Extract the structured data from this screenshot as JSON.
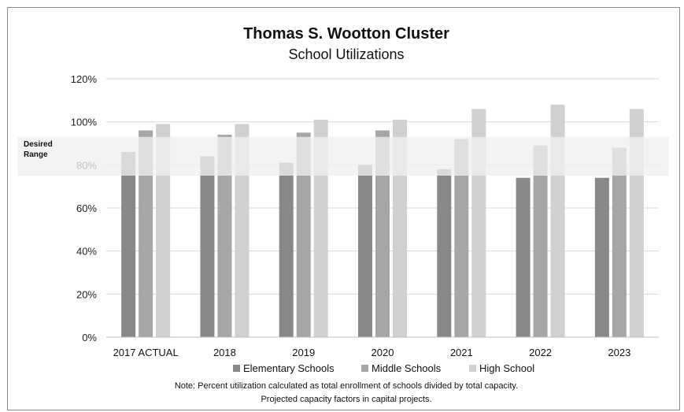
{
  "chart_data": {
    "type": "bar",
    "title": "Thomas S. Wootton Cluster",
    "subtitle": "School Utilizations",
    "categories": [
      "2017 ACTUAL",
      "2018",
      "2019",
      "2020",
      "2021",
      "2022",
      "2023"
    ],
    "series": [
      {
        "name": "Elementary Schools",
        "color": "#888888",
        "values": [
          86,
          84,
          81,
          80,
          78,
          74,
          74
        ]
      },
      {
        "name": "Middle Schools",
        "color": "#a6a6a6",
        "values": [
          96,
          94,
          95,
          96,
          92,
          89,
          88
        ]
      },
      {
        "name": "High School",
        "color": "#d0d0d0",
        "values": [
          99,
          99,
          101,
          101,
          106,
          108,
          106
        ]
      }
    ],
    "ylim": [
      0,
      120
    ],
    "yticks": [
      "0%",
      "20%",
      "40%",
      "60%",
      "80%",
      "100%",
      "120%"
    ],
    "tick_values": [
      0,
      20,
      40,
      60,
      80,
      100,
      120
    ],
    "grid": true,
    "legend": "bottom",
    "desired_range": {
      "label_line1": "Desired",
      "label_line2": "Range",
      "low": 75,
      "high": 93
    },
    "note_line1": "Note:  Percent utilization calculated as total enrollment of schools divided by total capacity.",
    "note_line2": "Projected capacity factors in capital projects."
  }
}
